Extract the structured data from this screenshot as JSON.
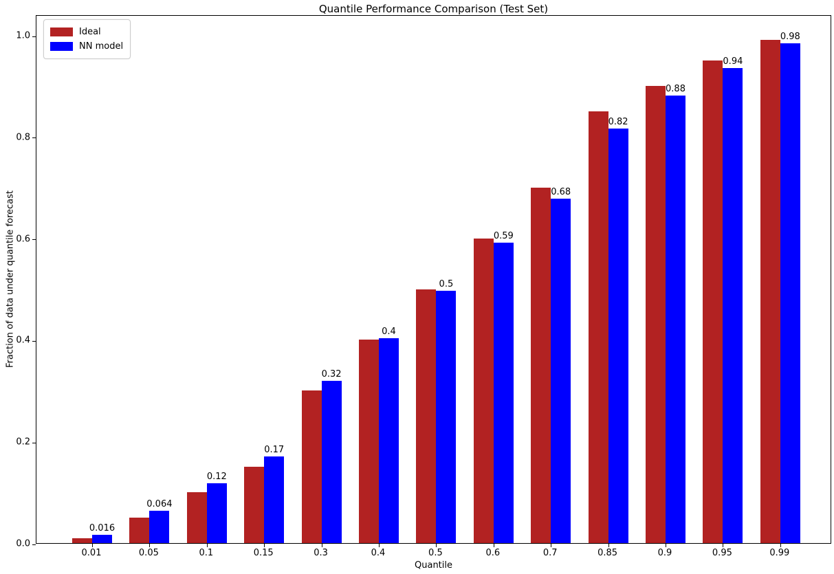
{
  "title": "Quantile Performance Comparison (Test Set)",
  "chart_data": {
    "type": "bar",
    "title": "Quantile Performance Comparison (Test Set)",
    "xlabel": "Quantile",
    "ylabel": "Fraction of data under quantile forecast",
    "categories": [
      "0.01",
      "0.05",
      "0.1",
      "0.15",
      "0.3",
      "0.4",
      "0.5",
      "0.6",
      "0.7",
      "0.85",
      "0.9",
      "0.95",
      "0.99"
    ],
    "series": [
      {
        "name": "Ideal",
        "color": "#B22222",
        "values": [
          0.01,
          0.05,
          0.1,
          0.15,
          0.3,
          0.4,
          0.5,
          0.6,
          0.7,
          0.85,
          0.9,
          0.95,
          0.99
        ]
      },
      {
        "name": "NN model",
        "color": "#0000FF",
        "values": [
          0.016,
          0.064,
          0.118,
          0.171,
          0.319,
          0.403,
          0.497,
          0.592,
          0.678,
          0.816,
          0.881,
          0.935,
          0.984
        ],
        "labels": [
          "0.016",
          "0.064",
          "0.12",
          "0.17",
          "0.32",
          "0.4",
          "0.5",
          "0.59",
          "0.68",
          "0.82",
          "0.88",
          "0.94",
          "0.98"
        ]
      }
    ],
    "ylim": [
      0,
      1.0406
    ],
    "yticks": [
      "0.0",
      "0.2",
      "0.4",
      "0.6",
      "0.8",
      "1.0"
    ],
    "grid": false,
    "legend_position": "upper left",
    "background": "#ffffff",
    "text_color": "#000000"
  }
}
